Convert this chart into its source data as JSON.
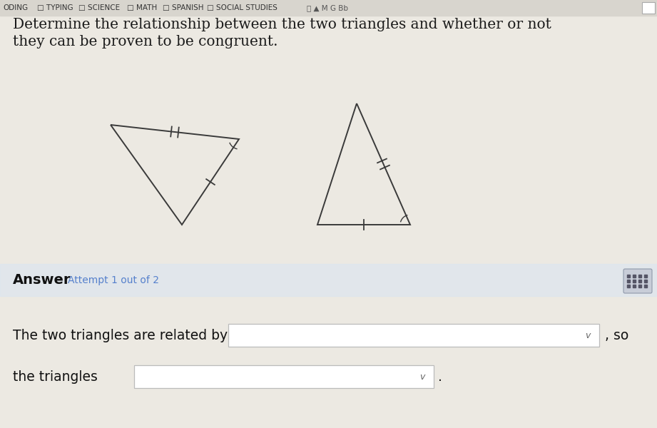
{
  "bg_color": "#ece9e2",
  "top_bar_color": "#d8d5ce",
  "page_bg": "#ece9e2",
  "title_line1": "Determine the relationship between the two triangles and whether or not",
  "title_line2": "they can be proven to be congruent.",
  "answer_label": "Answer",
  "attempt_text": "Attempt 1 out of 2",
  "sentence1": "The two triangles are related by",
  "sentence2": "the triangles",
  "so_text": ", so",
  "period_text": ".",
  "tri_color": "#3a3a3a",
  "tri_lw": 1.4,
  "tick_lw": 1.3,
  "title_fontsize": 14.5,
  "answer_fontsize": 14,
  "body_fontsize": 13.5,
  "nav_fontsize": 7.5
}
